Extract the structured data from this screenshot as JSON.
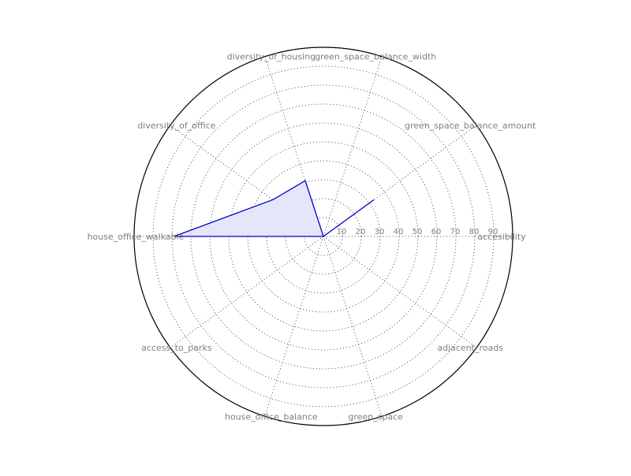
{
  "chart_data": {
    "type": "radar",
    "title": "",
    "axes": [
      "accesibility",
      "green_space_balance_amount",
      "green_space_balance_width",
      "diversity_of_housing",
      "diversity_of_office",
      "house_office_walkable",
      "access_to_parks",
      "house_office_balance",
      "green_space",
      "adjacent_roads"
    ],
    "radial_ticks": [
      10,
      20,
      30,
      40,
      50,
      60,
      70,
      80,
      90
    ],
    "rlim": [
      0,
      100
    ],
    "grid": true,
    "series": [
      {
        "color": "#0000cc",
        "fill": "#e3e3fb",
        "values": [
          0,
          33,
          0,
          31,
          33,
          79,
          0,
          0,
          0,
          0
        ]
      }
    ]
  }
}
